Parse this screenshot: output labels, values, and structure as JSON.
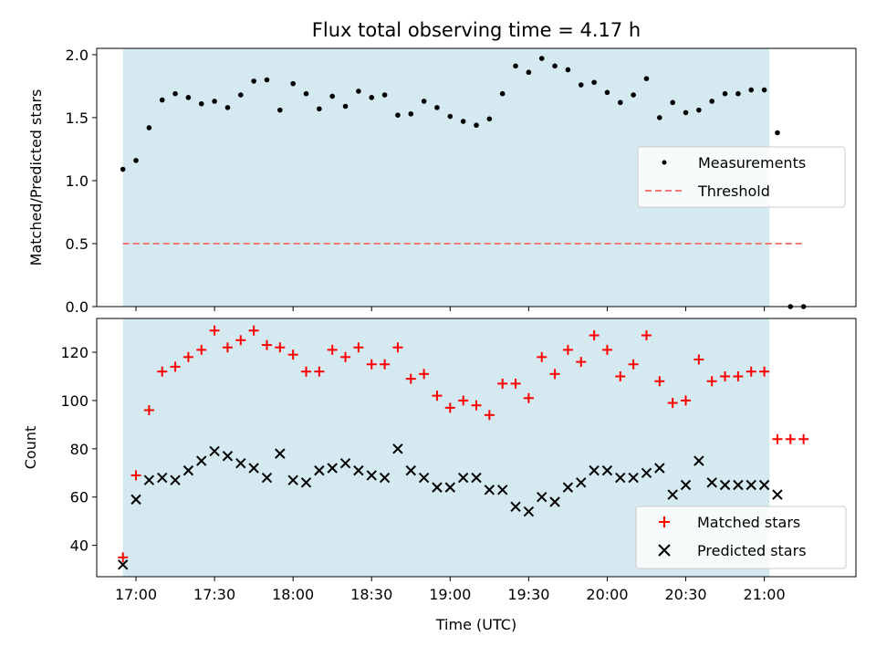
{
  "chart_data": [
    {
      "panel": "top",
      "type": "scatter",
      "title": "Flux total observing time = 4.17 h",
      "xlabel": "",
      "ylabel": "Matched/Predicted stars",
      "ylim": [
        0,
        2.05
      ],
      "yticks": [
        0.0,
        0.5,
        1.0,
        1.5,
        2.0
      ],
      "ytick_labels": [
        "0.0",
        "0.5",
        "1.0",
        "1.5",
        "2.0"
      ],
      "xlim_min": [
        1005,
        1295
      ],
      "shaded_span_min": [
        1015,
        1262
      ],
      "shaded_color": "#d4eaf0",
      "legend_position": "center-right",
      "series": [
        {
          "name": "Measurements",
          "marker": "dot",
          "color": "#000000",
          "x_min": [
            1015,
            1020,
            1025,
            1030,
            1035,
            1040,
            1045,
            1050,
            1055,
            1060,
            1065,
            1070,
            1075,
            1080,
            1085,
            1090,
            1095,
            1100,
            1105,
            1110,
            1115,
            1120,
            1125,
            1130,
            1135,
            1140,
            1145,
            1150,
            1155,
            1160,
            1165,
            1170,
            1175,
            1180,
            1185,
            1190,
            1195,
            1200,
            1205,
            1210,
            1215,
            1220,
            1225,
            1230,
            1235,
            1240,
            1245,
            1250,
            1255,
            1260,
            1265,
            1270,
            1275
          ],
          "y": [
            1.09,
            1.16,
            1.42,
            1.64,
            1.69,
            1.66,
            1.61,
            1.63,
            1.58,
            1.68,
            1.79,
            1.8,
            1.56,
            1.77,
            1.69,
            1.57,
            1.67,
            1.59,
            1.71,
            1.66,
            1.68,
            1.52,
            1.53,
            1.63,
            1.58,
            1.51,
            1.47,
            1.44,
            1.49,
            1.69,
            1.91,
            1.86,
            1.97,
            1.91,
            1.88,
            1.76,
            1.78,
            1.7,
            1.62,
            1.68,
            1.81,
            1.5,
            1.62,
            1.54,
            1.56,
            1.63,
            1.69,
            1.69,
            1.72,
            1.72,
            1.38,
            0.0,
            0.0
          ]
        },
        {
          "name": "Threshold",
          "line_style": "dashed",
          "color": "#f07a7a",
          "x_min": [
            1015,
            1275
          ],
          "y": [
            0.5,
            0.5
          ]
        }
      ]
    },
    {
      "panel": "bottom",
      "type": "scatter",
      "title": "",
      "xlabel": "Time (UTC)",
      "ylabel": "Count",
      "ylim": [
        27,
        134
      ],
      "yticks": [
        40,
        60,
        80,
        100,
        120
      ],
      "ytick_labels": [
        "40",
        "60",
        "80",
        "100",
        "120"
      ],
      "xlim_min": [
        1005,
        1295
      ],
      "xticks_min": [
        1020,
        1050,
        1080,
        1110,
        1140,
        1170,
        1200,
        1230,
        1260
      ],
      "xtick_labels": [
        "17:00",
        "17:30",
        "18:00",
        "18:30",
        "19:00",
        "19:30",
        "20:00",
        "20:30",
        "21:00"
      ],
      "shaded_span_min": [
        1015,
        1262
      ],
      "shaded_color": "#d4eaf0",
      "legend_position": "bottom-right",
      "series": [
        {
          "name": "Matched stars",
          "marker": "plus",
          "color": "#ff0000",
          "x_min": [
            1015,
            1020,
            1025,
            1030,
            1035,
            1040,
            1045,
            1050,
            1055,
            1060,
            1065,
            1070,
            1075,
            1080,
            1085,
            1090,
            1095,
            1100,
            1105,
            1110,
            1115,
            1120,
            1125,
            1130,
            1135,
            1140,
            1145,
            1150,
            1155,
            1160,
            1165,
            1170,
            1175,
            1180,
            1185,
            1190,
            1195,
            1200,
            1205,
            1210,
            1215,
            1220,
            1225,
            1230,
            1235,
            1240,
            1245,
            1250,
            1255,
            1260,
            1265,
            1270,
            1275
          ],
          "y": [
            35,
            69,
            96,
            112,
            114,
            118,
            121,
            129,
            122,
            125,
            129,
            123,
            122,
            119,
            112,
            112,
            121,
            118,
            122,
            115,
            115,
            122,
            109,
            111,
            102,
            97,
            100,
            98,
            94,
            107,
            107,
            101,
            118,
            111,
            121,
            116,
            127,
            121,
            110,
            115,
            127,
            108,
            99,
            100,
            117,
            108,
            110,
            110,
            112,
            112,
            84,
            84,
            84
          ]
        },
        {
          "name": "Predicted stars",
          "marker": "x",
          "color": "#000000",
          "x_min": [
            1015,
            1020,
            1025,
            1030,
            1035,
            1040,
            1045,
            1050,
            1055,
            1060,
            1065,
            1070,
            1075,
            1080,
            1085,
            1090,
            1095,
            1100,
            1105,
            1110,
            1115,
            1120,
            1125,
            1130,
            1135,
            1140,
            1145,
            1150,
            1155,
            1160,
            1165,
            1170,
            1175,
            1180,
            1185,
            1190,
            1195,
            1200,
            1205,
            1210,
            1215,
            1220,
            1225,
            1230,
            1235,
            1240,
            1245,
            1250,
            1255,
            1260,
            1265
          ],
          "y": [
            32,
            59,
            67,
            68,
            67,
            71,
            75,
            79,
            77,
            74,
            72,
            68,
            78,
            67,
            66,
            71,
            72,
            74,
            71,
            69,
            68,
            80,
            71,
            68,
            64,
            64,
            68,
            68,
            63,
            63,
            56,
            54,
            60,
            58,
            64,
            66,
            71,
            71,
            68,
            68,
            70,
            72,
            61,
            65,
            75,
            66,
            65,
            65,
            65,
            65,
            61
          ]
        }
      ]
    }
  ]
}
